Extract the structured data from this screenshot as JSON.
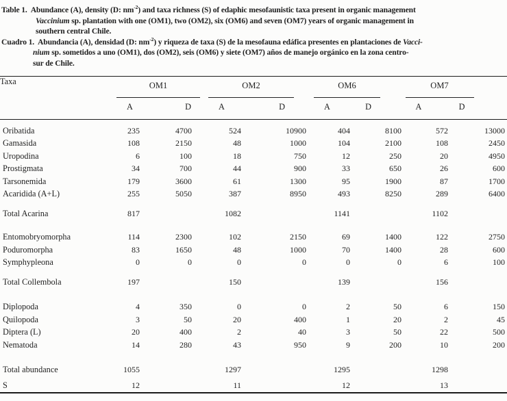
{
  "page": {
    "background": "#fcfcfb",
    "text_color": "#1f1f1f",
    "rule_color": "#1a1a1a"
  },
  "caption_en": {
    "label": "Table 1.",
    "lines": [
      [
        {
          "t": "Abundance (A), density (D: nm"
        },
        {
          "t": "-2",
          "sup": true
        },
        {
          "t": ") and taxa richness (S) of edaphic mesofaunistic taxa present in organic management"
        }
      ],
      [
        {
          "t": "Vaccinium",
          "i": true
        },
        {
          "t": " sp. plantation with one (OM1), two (OM2), six (OM6) and seven (OM7) years of organic management in"
        }
      ],
      [
        {
          "t": "southern central Chile."
        }
      ]
    ]
  },
  "caption_es": {
    "label": "Cuadro 1.",
    "lines": [
      [
        {
          "t": "Abundancia (A), densidad (D: nm"
        },
        {
          "t": "-2",
          "sup": true
        },
        {
          "t": ") y riqueza de taxa (S) de la mesofauna edáfica presentes en plantaciones de "
        },
        {
          "t": "Vacci-",
          "i": true
        }
      ],
      [
        {
          "t": "nium",
          "i": true
        },
        {
          "t": " sp. sometidos a uno (OM1), dos (OM2), seis (OM6) y siete (OM7) años de manejo orgánico en la zona centro-"
        }
      ],
      [
        {
          "t": "sur de Chile."
        }
      ]
    ]
  },
  "table": {
    "taxa_header": "Taxa",
    "sub_headers": [
      "A",
      "D"
    ],
    "groups": [
      {
        "label": "OM1"
      },
      {
        "label": "OM2"
      },
      {
        "label": "OM6"
      },
      {
        "label": "OM7"
      }
    ],
    "sections": [
      {
        "rows": [
          {
            "type": "data",
            "label": "Oribatida",
            "values": [
              235,
              4700,
              524,
              10900,
              404,
              8100,
              572,
              13000
            ]
          },
          {
            "type": "data",
            "label": "Gamasida",
            "values": [
              108,
              2150,
              48,
              1000,
              104,
              2100,
              108,
              2450
            ]
          },
          {
            "type": "data",
            "label": "Uropodina",
            "values": [
              6,
              100,
              18,
              750,
              12,
              250,
              20,
              4950
            ]
          },
          {
            "type": "data",
            "label": "Prostigmata",
            "values": [
              34,
              700,
              44,
              900,
              33,
              650,
              26,
              600
            ]
          },
          {
            "type": "data",
            "label": "Tarsonemida",
            "values": [
              179,
              3600,
              61,
              1300,
              95,
              1900,
              87,
              1700
            ]
          },
          {
            "type": "data",
            "label": "Acaridida (A+L)",
            "values": [
              255,
              5050,
              387,
              8950,
              493,
              8250,
              289,
              6400
            ]
          }
        ]
      },
      {
        "rows": [
          {
            "type": "total",
            "label": "Total Acarina",
            "values": [
              817,
              1082,
              1141,
              1102
            ]
          }
        ]
      },
      {
        "rows": [
          {
            "type": "data",
            "label": "Entomobryomorpha",
            "values": [
              114,
              2300,
              102,
              2150,
              69,
              1400,
              122,
              2750
            ]
          },
          {
            "type": "data",
            "label": "Poduromorpha",
            "values": [
              83,
              1650,
              48,
              1000,
              70,
              1400,
              28,
              600
            ]
          },
          {
            "type": "data",
            "label": "Symphypleona",
            "values": [
              0,
              0,
              0,
              0,
              0,
              0,
              6,
              100
            ]
          }
        ]
      },
      {
        "rows": [
          {
            "type": "total",
            "label": "Total Collembola",
            "values": [
              197,
              150,
              139,
              156
            ]
          }
        ]
      },
      {
        "rows": [
          {
            "type": "data",
            "label": "Diplopoda",
            "values": [
              4,
              350,
              0,
              0,
              2,
              50,
              6,
              150
            ]
          },
          {
            "type": "data",
            "label": "Quilopoda",
            "values": [
              3,
              50,
              20,
              400,
              1,
              20,
              2,
              45
            ]
          },
          {
            "type": "data",
            "label": "Diptera (L)",
            "values": [
              20,
              400,
              2,
              40,
              3,
              50,
              22,
              500
            ]
          },
          {
            "type": "data",
            "label": "Nematoda",
            "values": [
              14,
              280,
              43,
              950,
              9,
              200,
              10,
              200
            ]
          }
        ]
      },
      {
        "rows": [
          {
            "type": "total",
            "label": "Total abundance",
            "values": [
              1055,
              1297,
              1295,
              1298
            ]
          }
        ]
      },
      {
        "rows": [
          {
            "type": "total",
            "label": "S",
            "values": [
              12,
              11,
              12,
              13
            ]
          }
        ]
      }
    ]
  }
}
